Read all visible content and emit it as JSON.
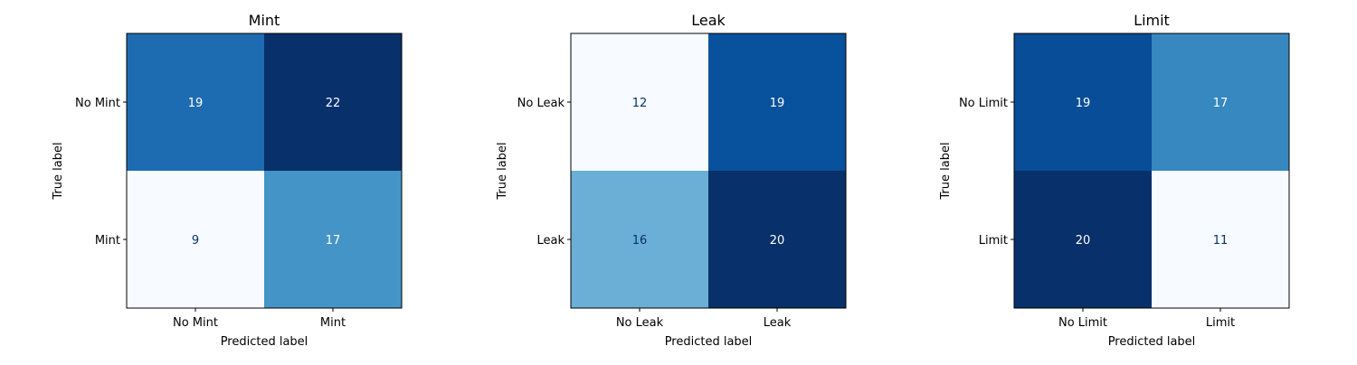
{
  "chart_data": [
    {
      "type": "heatmap",
      "title": "Mint",
      "xlabel": "Predicted label",
      "ylabel": "True label",
      "x_ticks": [
        "No Mint",
        "Mint"
      ],
      "y_ticks": [
        "No Mint",
        "Mint"
      ],
      "values": [
        [
          19,
          22
        ],
        [
          9,
          17
        ]
      ],
      "colormap": "Blues"
    },
    {
      "type": "heatmap",
      "title": "Leak",
      "xlabel": "Predicted label",
      "ylabel": "True label",
      "x_ticks": [
        "No Leak",
        "Leak"
      ],
      "y_ticks": [
        "No Leak",
        "Leak"
      ],
      "values": [
        [
          12,
          19
        ],
        [
          16,
          20
        ]
      ],
      "colormap": "Blues"
    },
    {
      "type": "heatmap",
      "title": "Limit",
      "xlabel": "Predicted label",
      "ylabel": "True label",
      "x_ticks": [
        "No Limit",
        "Limit"
      ],
      "y_ticks": [
        "No Limit",
        "Limit"
      ],
      "values": [
        [
          19,
          17
        ],
        [
          20,
          11
        ]
      ],
      "colormap": "Blues"
    }
  ]
}
